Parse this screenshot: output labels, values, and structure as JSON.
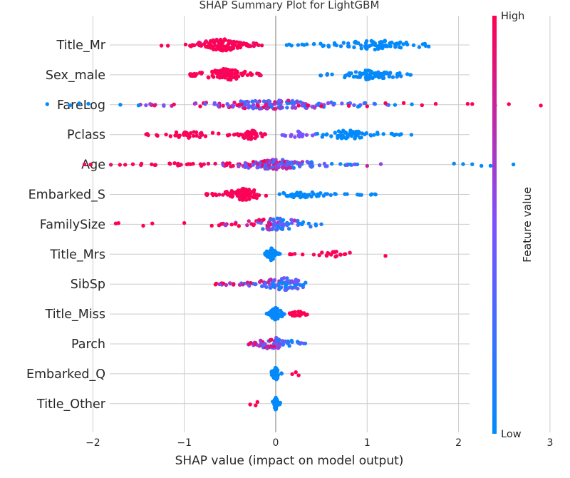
{
  "chart_data": {
    "type": "scatter",
    "title": "SHAP Summary Plot for LightGBM",
    "xlabel": "SHAP value (impact on model output)",
    "ylabel": "",
    "xlim": [
      -2.9,
      3.1
    ],
    "xticks": [
      -2,
      -1,
      0,
      1,
      2,
      3
    ],
    "xtick_labels": [
      "−2",
      "−1",
      "0",
      "1",
      "2",
      "3"
    ],
    "grid": true,
    "colorbar": {
      "label": "Feature value",
      "high": "High",
      "low": "Low",
      "high_color": "#ff0052",
      "low_color": "#008bfb"
    },
    "features": [
      {
        "name": "Title_Mr",
        "clusters": [
          {
            "range": [
              -1.0,
              -0.15
            ],
            "color": 1,
            "n": 120,
            "width": 0.42
          },
          {
            "range": [
              0.12,
              1.72
            ],
            "color": 0,
            "n": 85,
            "width": 0.32,
            "center": 1.1
          }
        ],
        "points": [
          {
            "x": -1.25,
            "c": 1
          },
          {
            "x": -1.18,
            "c": 1
          },
          {
            "x": 0.12,
            "c": 0
          }
        ]
      },
      {
        "name": "Sex_male",
        "clusters": [
          {
            "range": [
              -0.95,
              -0.15
            ],
            "color": 1,
            "n": 110,
            "width": 0.42
          },
          {
            "range": [
              0.45,
              1.5
            ],
            "color": 0,
            "n": 80,
            "width": 0.32,
            "center": 1.0
          }
        ],
        "points": []
      },
      {
        "name": "FareLog",
        "clusters": [
          {
            "range": [
              -1.5,
              1.5
            ],
            "color": "mixed",
            "n": 160,
            "width": 0.3,
            "center": 0.0
          }
        ],
        "points": [
          {
            "x": -2.5,
            "c": 0
          },
          {
            "x": -2.25,
            "c": 0
          },
          {
            "x": -2.15,
            "c": 0
          },
          {
            "x": -2.05,
            "c": 0
          },
          {
            "x": -1.7,
            "c": 0
          },
          {
            "x": -1.5,
            "c": 0
          },
          {
            "x": 0.25,
            "c": 1
          },
          {
            "x": 0.35,
            "c": 1
          },
          {
            "x": 0.5,
            "c": 1
          },
          {
            "x": 0.8,
            "c": 1
          },
          {
            "x": 1.0,
            "c": 1
          },
          {
            "x": 1.2,
            "c": 1
          },
          {
            "x": 1.4,
            "c": 1
          },
          {
            "x": 1.6,
            "c": 1
          },
          {
            "x": 1.75,
            "c": 1
          },
          {
            "x": 2.1,
            "c": 1
          },
          {
            "x": 2.15,
            "c": 1
          },
          {
            "x": 2.4,
            "c": 1
          },
          {
            "x": 2.55,
            "c": 1
          },
          {
            "x": 2.9,
            "c": 1
          }
        ]
      },
      {
        "name": "Pclass",
        "clusters": [
          {
            "range": [
              -1.45,
              -0.4
            ],
            "color": 1,
            "n": 40,
            "width": 0.22,
            "center": -0.95
          },
          {
            "range": [
              -0.45,
              -0.1
            ],
            "color": 1,
            "n": 50,
            "width": 0.35
          },
          {
            "range": [
              0.05,
              0.45
            ],
            "color": 0.5,
            "n": 20,
            "width": 0.22
          },
          {
            "range": [
              0.45,
              1.55
            ],
            "color": 0,
            "n": 70,
            "width": 0.3,
            "center": 0.8
          }
        ],
        "points": []
      },
      {
        "name": "Age",
        "clusters": [
          {
            "range": [
              -2.1,
              -0.5
            ],
            "color": 1,
            "n": 30,
            "width": 0.12,
            "center": -1.0
          },
          {
            "range": [
              -0.6,
              0.9
            ],
            "color": "mixed",
            "n": 160,
            "width": 0.35,
            "center": 0.0
          }
        ],
        "points": [
          {
            "x": 1.0,
            "c": 0.8
          },
          {
            "x": 1.15,
            "c": 0.6
          },
          {
            "x": 1.95,
            "c": 0
          },
          {
            "x": 2.05,
            "c": 0
          },
          {
            "x": 2.15,
            "c": 0
          },
          {
            "x": 2.25,
            "c": 0
          },
          {
            "x": 2.35,
            "c": 0
          },
          {
            "x": 2.6,
            "c": 0
          }
        ]
      },
      {
        "name": "Embarked_S",
        "clusters": [
          {
            "range": [
              -0.8,
              -0.1
            ],
            "color": 1,
            "n": 100,
            "width": 0.4,
            "center": -0.35
          },
          {
            "range": [
              0.0,
              1.1
            ],
            "color": 0,
            "n": 60,
            "width": 0.22,
            "center": 0.25
          }
        ],
        "points": []
      },
      {
        "name": "FamilySize",
        "clusters": [
          {
            "range": [
              -0.6,
              0.5
            ],
            "color": "mixed",
            "n": 90,
            "width": 0.42,
            "center": 0.0
          }
        ],
        "points": [
          {
            "x": -1.75,
            "c": 1
          },
          {
            "x": -1.72,
            "c": 1
          },
          {
            "x": -1.45,
            "c": 1
          },
          {
            "x": -1.35,
            "c": 1
          },
          {
            "x": -1.0,
            "c": 1
          },
          {
            "x": -0.7,
            "c": 1
          },
          {
            "x": -0.62,
            "c": 1
          }
        ]
      },
      {
        "name": "Title_Mrs",
        "clusters": [
          {
            "range": [
              -0.12,
              0.05
            ],
            "color": 0,
            "n": 80,
            "width": 0.42,
            "center": -0.05
          },
          {
            "range": [
              0.15,
              0.9
            ],
            "color": 1,
            "n": 25,
            "width": 0.18,
            "center": 0.65
          }
        ],
        "points": [
          {
            "x": 1.2,
            "c": 1
          }
        ]
      },
      {
        "name": "SibSp",
        "clusters": [
          {
            "range": [
              -0.7,
              0.35
            ],
            "color": "mixed",
            "n": 100,
            "width": 0.42,
            "center": 0.1
          }
        ],
        "points": []
      },
      {
        "name": "Title_Miss",
        "clusters": [
          {
            "range": [
              -0.1,
              0.1
            ],
            "color": 0,
            "n": 80,
            "width": 0.42,
            "center": 0.0
          },
          {
            "range": [
              0.1,
              0.45
            ],
            "color": 1,
            "n": 25,
            "width": 0.18,
            "center": 0.25
          }
        ],
        "points": []
      },
      {
        "name": "Parch",
        "clusters": [
          {
            "range": [
              -0.3,
              0.35
            ],
            "color": "mixed",
            "n": 70,
            "width": 0.42,
            "center": 0.0
          }
        ],
        "points": []
      },
      {
        "name": "Embarked_Q",
        "clusters": [
          {
            "range": [
              -0.05,
              0.08
            ],
            "color": 0,
            "n": 60,
            "width": 0.42,
            "center": 0.0
          }
        ],
        "points": [
          {
            "x": 0.18,
            "c": 1
          },
          {
            "x": 0.25,
            "c": 1
          },
          {
            "x": 0.22,
            "c": 1
          }
        ]
      },
      {
        "name": "Title_Other",
        "clusters": [
          {
            "range": [
              -0.04,
              0.05
            ],
            "color": 0,
            "n": 60,
            "width": 0.42,
            "center": 0.0
          }
        ],
        "points": [
          {
            "x": -0.28,
            "c": 1
          },
          {
            "x": -0.22,
            "c": 1
          },
          {
            "x": -0.2,
            "c": 1
          }
        ]
      }
    ]
  }
}
